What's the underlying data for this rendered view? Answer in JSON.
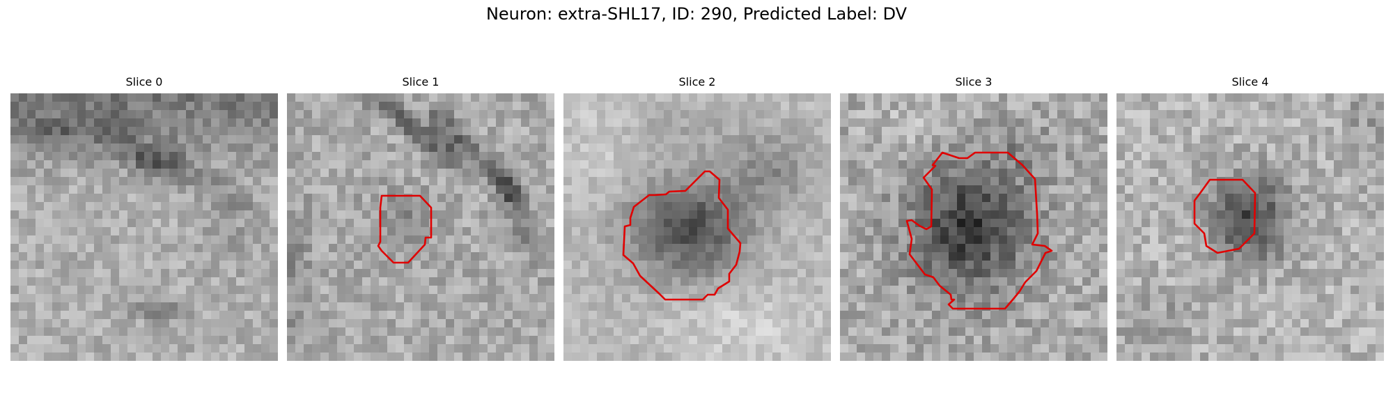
{
  "figure": {
    "title": "Neuron: extra-SHL17, ID: 290, Predicted Label: DV"
  },
  "colors": {
    "contour": "#e00000",
    "background": "#ffffff"
  },
  "panels": [
    {
      "title": "Slice 0",
      "has_contour": false,
      "image": "grayscale-microscopy-patch"
    },
    {
      "title": "Slice 1",
      "has_contour": true,
      "image": "grayscale-microscopy-patch"
    },
    {
      "title": "Slice 2",
      "has_contour": true,
      "image": "grayscale-microscopy-patch"
    },
    {
      "title": "Slice 3",
      "has_contour": true,
      "image": "grayscale-microscopy-patch"
    },
    {
      "title": "Slice 4",
      "has_contour": true,
      "image": "grayscale-microscopy-patch"
    }
  ]
}
